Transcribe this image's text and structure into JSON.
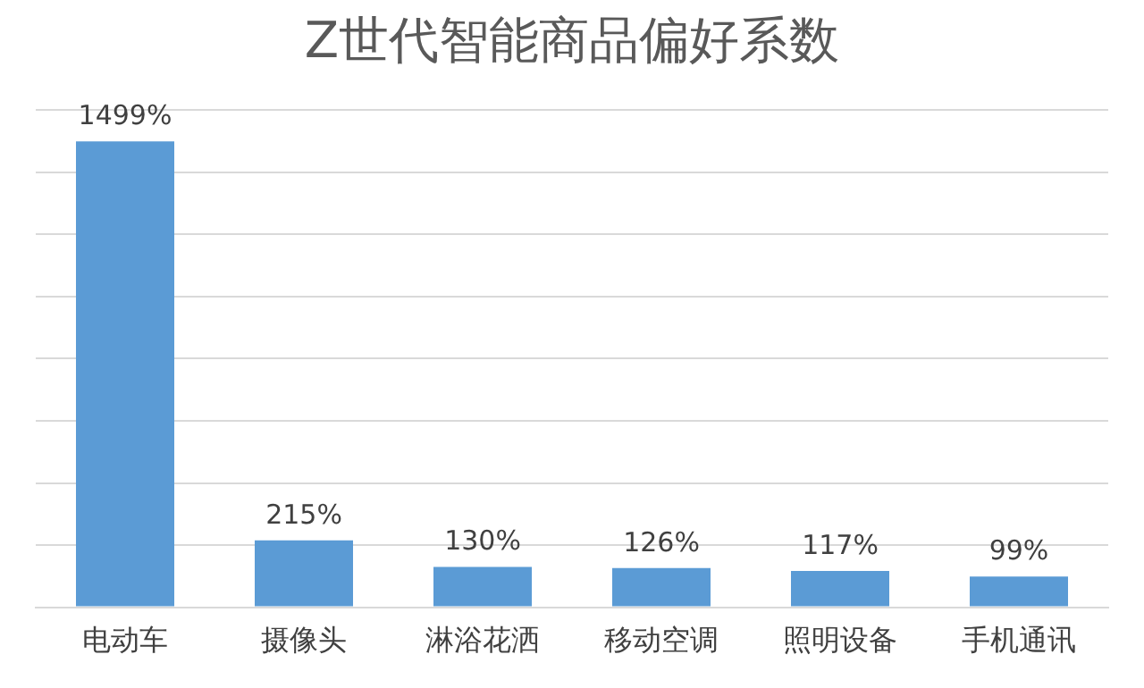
{
  "chart_data": {
    "type": "bar",
    "title": "Z世代智能商品偏好系数",
    "categories": [
      "电动车",
      "摄像头",
      "淋浴花洒",
      "移动空调",
      "照明设备",
      "手机通讯"
    ],
    "values": [
      1499,
      215,
      130,
      126,
      117,
      99
    ],
    "value_labels": [
      "1499%",
      "215%",
      "130%",
      "126%",
      "117%",
      "99%"
    ],
    "color": "#5b9bd5",
    "ylim": [
      0,
      1600
    ],
    "yticks": [
      {
        "value": 0,
        "label": null
      },
      {
        "value": 200,
        "label": null
      },
      {
        "value": 400,
        "label": null
      },
      {
        "value": 600,
        "label": null
      },
      {
        "value": 800,
        "label": null
      },
      {
        "value": 1000,
        "label": null
      },
      {
        "value": 1200,
        "label": null
      },
      {
        "value": 1400,
        "label": null
      },
      {
        "value": 1600,
        "label": null
      }
    ],
    "tick_labels": "x",
    "grid": "y",
    "legend": false
  }
}
